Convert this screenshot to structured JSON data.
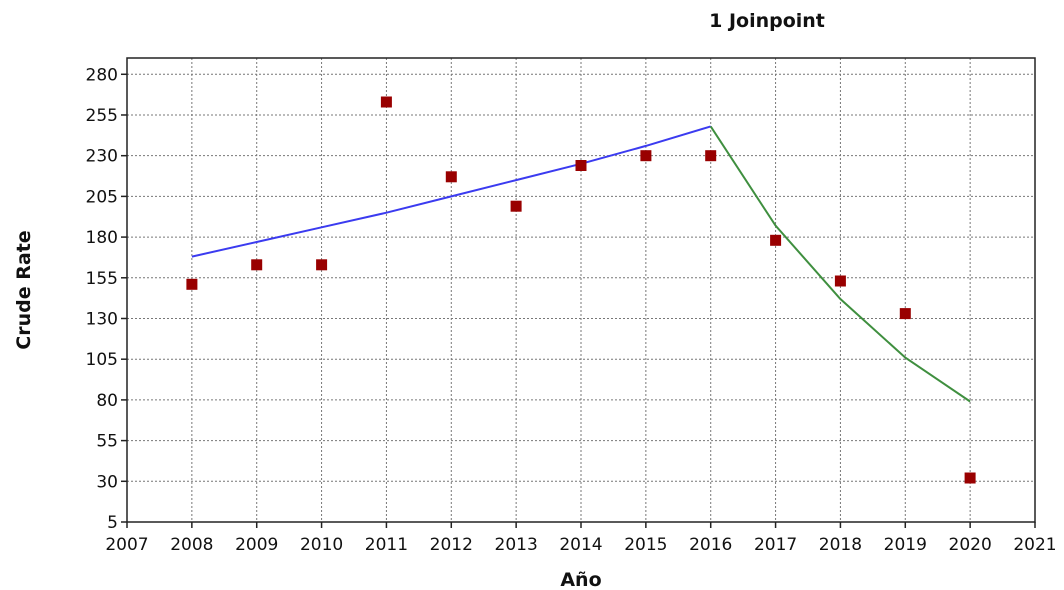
{
  "chart_data": {
    "type": "scatter",
    "title": "1 Joinpoint",
    "xlabel": "Año",
    "ylabel": "Crude Rate",
    "xlim": [
      2007,
      2021
    ],
    "ylim": [
      5,
      290
    ],
    "xticks": [
      2007,
      2008,
      2009,
      2010,
      2011,
      2012,
      2013,
      2014,
      2015,
      2016,
      2017,
      2018,
      2019,
      2020,
      2021
    ],
    "yticks": [
      5,
      30,
      55,
      80,
      105,
      130,
      155,
      180,
      205,
      230,
      255,
      280
    ],
    "grid": true,
    "observed": {
      "color": "#990000",
      "x": [
        2008,
        2009,
        2010,
        2011,
        2012,
        2013,
        2014,
        2015,
        2016,
        2017,
        2018,
        2019,
        2020
      ],
      "y": [
        151,
        163,
        163,
        263,
        217,
        199,
        224,
        230,
        230,
        178,
        153,
        133,
        32
      ]
    },
    "segments": [
      {
        "color": "#3b3bf0",
        "x": [
          2008,
          2009,
          2010,
          2011,
          2012,
          2013,
          2014,
          2015,
          2016
        ],
        "y": [
          168,
          177,
          186,
          195,
          205,
          215,
          225,
          236,
          248
        ]
      },
      {
        "color": "#3f8f3f",
        "x": [
          2016,
          2017,
          2018,
          2019,
          2020
        ],
        "y": [
          248,
          187,
          142,
          106,
          79
        ]
      }
    ]
  }
}
